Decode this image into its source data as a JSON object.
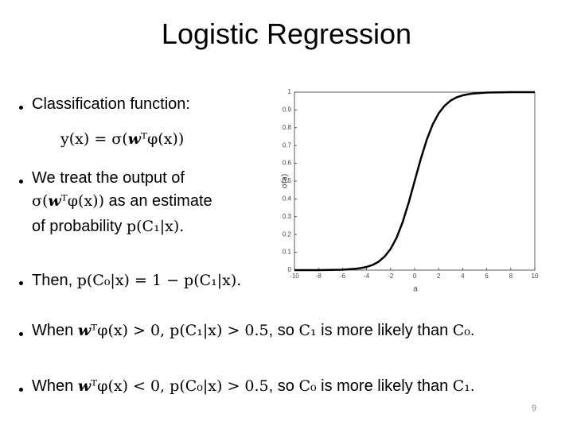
{
  "title": "Logistic Regression",
  "bullets": [
    [
      [
        "Classification function:"
      ],
      [
        "y(x) = σ(",
        "w",
        "ᵀφ(x))"
      ]
    ],
    [
      [
        "We treat the output of"
      ],
      [
        "σ(",
        "w",
        "ᵀφ(x))",
        " as an estimate"
      ],
      [
        "of probability ",
        "p(C₁|x)."
      ]
    ],
    [
      [
        "Then, ",
        "p(C₀|x) = 1 − p(C₁|x)."
      ]
    ],
    [
      [
        "When ",
        "w",
        "ᵀφ(x) > 0, p(C₁|x) > 0.5",
        ", so ",
        "C₁",
        " is more likely than ",
        "C₀",
        "."
      ]
    ],
    [
      [
        "When ",
        "w",
        "ᵀφ(x) < 0, p(C₀|x) > 0.5",
        ", so ",
        "C₀",
        " is more likely than ",
        "C₁",
        "."
      ]
    ]
  ],
  "page_number": "9",
  "chart_data": {
    "type": "line",
    "x_label": "a",
    "y_label": "σ(a)",
    "x": [
      -10,
      -9,
      -8,
      -7,
      -6,
      -5,
      -4.5,
      -4,
      -3.5,
      -3,
      -2.5,
      -2,
      -1.5,
      -1,
      -0.5,
      0,
      0.5,
      1,
      1.5,
      2,
      2.5,
      3,
      3.5,
      4,
      4.5,
      5,
      6,
      7,
      8,
      9,
      10
    ],
    "values": [
      0,
      0,
      0,
      0.001,
      0.002,
      0.007,
      0.011,
      0.018,
      0.029,
      0.047,
      0.076,
      0.119,
      0.182,
      0.269,
      0.378,
      0.5,
      0.622,
      0.731,
      0.818,
      0.881,
      0.924,
      0.953,
      0.971,
      0.982,
      0.989,
      0.993,
      0.998,
      0.999,
      1,
      1,
      1
    ],
    "color": "#000000",
    "xlim": [
      -10,
      10
    ],
    "xticks": [
      -10,
      -8,
      -6,
      -4,
      -2,
      0,
      2,
      4,
      6,
      8,
      10
    ],
    "ylim": [
      0,
      1
    ],
    "yticks": [
      0,
      0.1,
      0.2,
      0.3,
      0.4,
      0.5,
      0.6,
      0.7,
      0.8,
      0.9,
      1
    ]
  }
}
